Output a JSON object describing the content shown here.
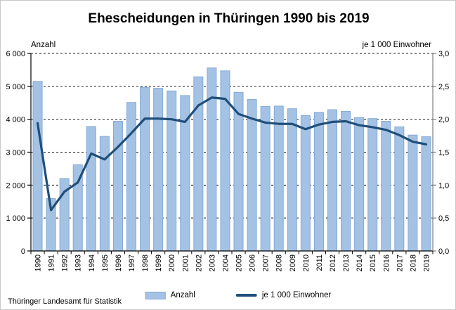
{
  "title": "Ehescheidungen in Thüringen 1990 bis 2019",
  "footer": {
    "source": "Thüringer Landesamt für Statistik"
  },
  "legend": {
    "bar_label": "Anzahl",
    "line_label": "je 1 000 Einwohner"
  },
  "colors": {
    "bar_fill": "#a4c2e4",
    "bar_border": "#84a9d4",
    "line": "#1f4e79",
    "grid": "#1a1a1a",
    "axis_left": "#000000",
    "axis_right": "#7f7f7f",
    "text": "#000000"
  },
  "chart_data": {
    "type": "bar+line combo, dual axis",
    "title": "Ehescheidungen in Thüringen 1990 bis 2019",
    "categories": [
      "1990",
      "1991",
      "1992",
      "1993",
      "1994",
      "1995",
      "1996",
      "1997",
      "1998",
      "1999",
      "2000",
      "2001",
      "2002",
      "2003",
      "2004",
      "2005",
      "2006",
      "2007",
      "2008",
      "2009",
      "2010",
      "2011",
      "2012",
      "2013",
      "2014",
      "2015",
      "2016",
      "2017",
      "2018",
      "2019"
    ],
    "series": [
      {
        "name": "Anzahl",
        "type": "bar",
        "axis": "left",
        "values": [
          5150,
          1590,
          2200,
          2620,
          3780,
          3480,
          3940,
          4510,
          4970,
          4940,
          4860,
          4720,
          5290,
          5560,
          5470,
          4820,
          4600,
          4390,
          4400,
          4320,
          4110,
          4210,
          4290,
          4240,
          4050,
          4020,
          3940,
          3770,
          3520,
          3470
        ]
      },
      {
        "name": "je 1 000 Einwohner",
        "type": "line",
        "axis": "right",
        "values": [
          1.94,
          0.62,
          0.9,
          1.04,
          1.48,
          1.39,
          1.58,
          1.79,
          2.01,
          2.01,
          2.0,
          1.96,
          2.21,
          2.33,
          2.31,
          2.08,
          2.01,
          1.95,
          1.93,
          1.93,
          1.85,
          1.92,
          1.96,
          1.97,
          1.91,
          1.88,
          1.84,
          1.76,
          1.66,
          1.62
        ]
      }
    ],
    "left_axis": {
      "label": "Anzahl",
      "min": 0,
      "max": 6000,
      "tick_step": 1000,
      "tick_labels": [
        "0",
        "1 000",
        "2 000",
        "3 000",
        "4 000",
        "5 000",
        "6 000"
      ]
    },
    "right_axis": {
      "label": "je 1 000 Einwohner",
      "min": 0.0,
      "max": 3.0,
      "tick_step": 0.5,
      "tick_labels": [
        "0,0",
        "0,5",
        "1,0",
        "1,5",
        "2,0",
        "2,5",
        "3,0"
      ]
    },
    "grid": "horizontal dashed gridlines at every left-axis step incl. top",
    "legend_position": "bottom"
  }
}
